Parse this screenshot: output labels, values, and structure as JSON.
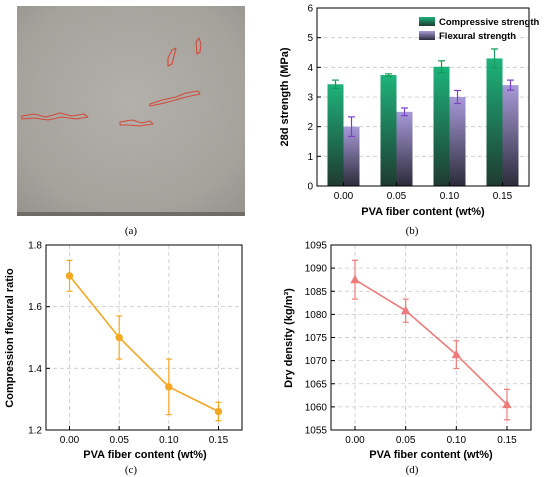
{
  "panels": {
    "a": {
      "label": "(a)"
    },
    "b": {
      "label": "(b)"
    },
    "c": {
      "label": "(c)"
    },
    "d": {
      "label": "(d)"
    }
  },
  "colors": {
    "compressive_top": "#1db37a",
    "compressive_bottom": "#1f3a30",
    "flexural_top": "#a79ad8",
    "flexural_bottom": "#2c2c3a",
    "compressive_err": "#159a58",
    "flexural_err": "#7b3fc8",
    "orange": "#f5a623",
    "red": "#ee7b7b",
    "photo_bg": "#a9a69f",
    "crack": "#d24b3c"
  },
  "chart_data": [
    {
      "panel": "b",
      "type": "bar",
      "categories": [
        "0.00",
        "0.05",
        "0.10",
        "0.15"
      ],
      "xlabel": "PVA fiber content (wt%)",
      "ylabel": "28d strength (MPa)",
      "ylim": [
        0,
        6
      ],
      "yticks": [
        "0",
        "1",
        "2",
        "3",
        "4",
        "5",
        "6"
      ],
      "grid": true,
      "legend_position": "top-right",
      "series": [
        {
          "name": "Compressive strength",
          "values": [
            3.43,
            3.74,
            4.02,
            4.3
          ],
          "errors": [
            0.14,
            0.04,
            0.2,
            0.32
          ]
        },
        {
          "name": "Flexural strength",
          "values": [
            2.0,
            2.5,
            3.0,
            3.4
          ],
          "errors": [
            0.33,
            0.13,
            0.22,
            0.17
          ]
        }
      ]
    },
    {
      "panel": "c",
      "type": "line",
      "x": [
        "0.00",
        "0.05",
        "0.10",
        "0.15"
      ],
      "values": [
        1.7,
        1.5,
        1.34,
        1.26
      ],
      "errors": [
        0.05,
        0.07,
        0.09,
        0.03
      ],
      "xlabel": "PVA fiber content (wt%)",
      "ylabel": "Compression flexural ratio",
      "ylim": [
        1.2,
        1.8
      ],
      "yticks": [
        "1.2",
        "1.4",
        "1.6",
        "1.8"
      ],
      "grid": true,
      "marker": "circle"
    },
    {
      "panel": "d",
      "type": "line",
      "x": [
        "0.00",
        "0.05",
        "0.10",
        "0.15"
      ],
      "values": [
        1087.5,
        1080.8,
        1071.3,
        1060.5
      ],
      "errors": [
        4.2,
        2.5,
        3.0,
        3.3
      ],
      "xlabel": "PVA fiber content (wt%)",
      "ylabel": "Dry density (kg/m³)",
      "ylim": [
        1055,
        1095
      ],
      "yticks": [
        "1055",
        "1060",
        "1065",
        "1070",
        "1075",
        "1080",
        "1085",
        "1090",
        "1095"
      ],
      "grid": true,
      "marker": "triangle"
    }
  ]
}
